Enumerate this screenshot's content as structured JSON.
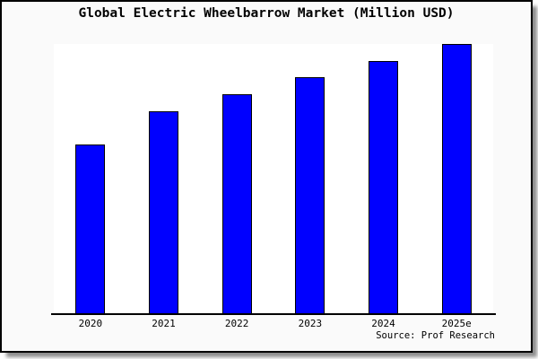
{
  "title": "Global Electric Wheelbarrow Market (Million USD)",
  "source": "Source: Prof Research",
  "colors": {
    "bar_fill": "#0000FF",
    "bar_border": "#000000",
    "plot_background": "#FFFFFF",
    "page_background": "#FAFAFA",
    "frame_border": "#000000"
  },
  "chart_data": {
    "type": "bar",
    "title": "Global Electric Wheelbarrow Market (Million USD)",
    "categories": [
      "2020",
      "2021",
      "2022",
      "2023",
      "2024",
      "2025e"
    ],
    "values": [
      62.7,
      75.0,
      81.3,
      87.7,
      93.7,
      100
    ],
    "values_note": "relative bar heights in % of tallest bar; no y-axis scale or value labels are shown in the image",
    "xlabel": "",
    "ylabel": "",
    "ylim": [
      0,
      100
    ],
    "grid": false,
    "legend": "none",
    "annotations": [
      "Source: Prof Research"
    ]
  }
}
